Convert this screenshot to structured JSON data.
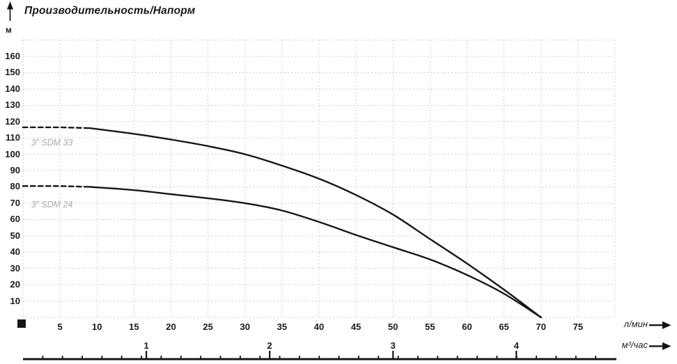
{
  "colors": {
    "curve": "#161616",
    "grid": "#cccccc",
    "text": "#1a1a1a",
    "series_label": "#a9a9a9",
    "background": "#ffffff"
  },
  "chart_data": {
    "type": "line",
    "title": "Производительность/Напорм",
    "ylabel": "м",
    "xlabel": "л/мин",
    "xlabel_secondary": "м³/час",
    "xlim": [
      0,
      80
    ],
    "ylim": [
      0,
      170
    ],
    "grid": true,
    "x_ticks": [
      5,
      10,
      15,
      20,
      25,
      30,
      35,
      40,
      45,
      50,
      55,
      60,
      65,
      70,
      75
    ],
    "y_ticks": [
      10,
      20,
      30,
      40,
      50,
      60,
      70,
      80,
      90,
      100,
      110,
      120,
      130,
      140,
      150,
      160
    ],
    "secondary_ticks": [
      1,
      2,
      3,
      4
    ],
    "secondary_unit_in_lmin": 16.6667,
    "series": [
      {
        "name": "3” SDM 33",
        "dash_until_x": 9,
        "label_pos": {
          "x": 1.1,
          "y": 107
        },
        "x": [
          0,
          5,
          9,
          15,
          20,
          25,
          30,
          35,
          40,
          45,
          50,
          55,
          60,
          65,
          70
        ],
        "y": [
          116.5,
          116.5,
          116,
          112.5,
          109,
          105,
          100,
          93,
          85,
          75,
          63,
          48,
          33,
          17,
          0
        ]
      },
      {
        "name": "3” SDM 24",
        "dash_until_x": 9,
        "label_pos": {
          "x": 1.1,
          "y": 69
        },
        "x": [
          0,
          5,
          9,
          15,
          20,
          25,
          30,
          35,
          40,
          45,
          50,
          55,
          60,
          65,
          70
        ],
        "y": [
          80.5,
          80.5,
          80,
          78,
          75.5,
          73,
          70,
          65.5,
          58.5,
          50.5,
          43,
          35.5,
          26,
          14.5,
          0
        ]
      }
    ]
  }
}
